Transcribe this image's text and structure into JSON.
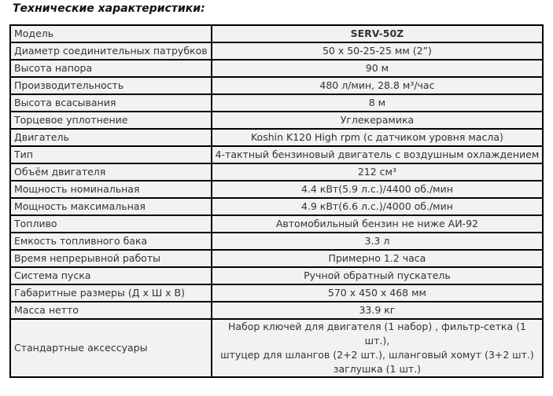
{
  "title": "Технические характеристики:",
  "rows": [
    {
      "label": "Модель",
      "value": "SERV-50Z"
    },
    {
      "label": "Диаметр соединительных  патрубков",
      "value": "50 х 50-25-25 мм (2”)"
    },
    {
      "label": "Высота напора",
      "value": "90 м"
    },
    {
      "label": "Производительность",
      "value": "480 л/мин, 28.8 м³/час"
    },
    {
      "label": "Высота всасывания",
      "value": "8 м"
    },
    {
      "label": "Торцевое уплотнение",
      "value": "Углекерамика"
    },
    {
      "label": "Двигатель",
      "value": "Koshin K120 High rpm (с датчиком уровня масла)"
    },
    {
      "label": "Тип",
      "value": "4-тактный бензиновый двигатель с воздушным охлаждением"
    },
    {
      "label": "Объём двигателя",
      "value": "212 см³"
    },
    {
      "label": "Мощность номинальная",
      "value": "4.4 кВт(5.9 л.с.)/4400 об./мин"
    },
    {
      "label": "Мощность максимальная",
      "value": "4.9 кВт(6.6 л.с.)/4000 об./мин"
    },
    {
      "label": "Топливо",
      "value": "Автомобильный бензин не ниже АИ-92"
    },
    {
      "label": "Емкость топливного бака",
      "value": "3.3 л"
    },
    {
      "label": "Время непрерывной работы",
      "value": "Примерно 1.2  часа"
    },
    {
      "label": "Система пуска",
      "value": "Ручной обратный пускатель"
    },
    {
      "label": "Габаритные размеры (Д х Ш х В)",
      "value": "570 х 450 х 468 мм"
    },
    {
      "label": "Масса нетто",
      "value": "33.9 кг"
    },
    {
      "label": "Стандартные аксессуары",
      "value_lines": [
        "Набор ключей для двигателя (1 набор) , фильтр-сетка (1 шт.),",
        "штуцер для шлангов (2+2 шт.), шланговый хомут (3+2 шт.)",
        "заглушка (1 шт.)"
      ]
    }
  ]
}
